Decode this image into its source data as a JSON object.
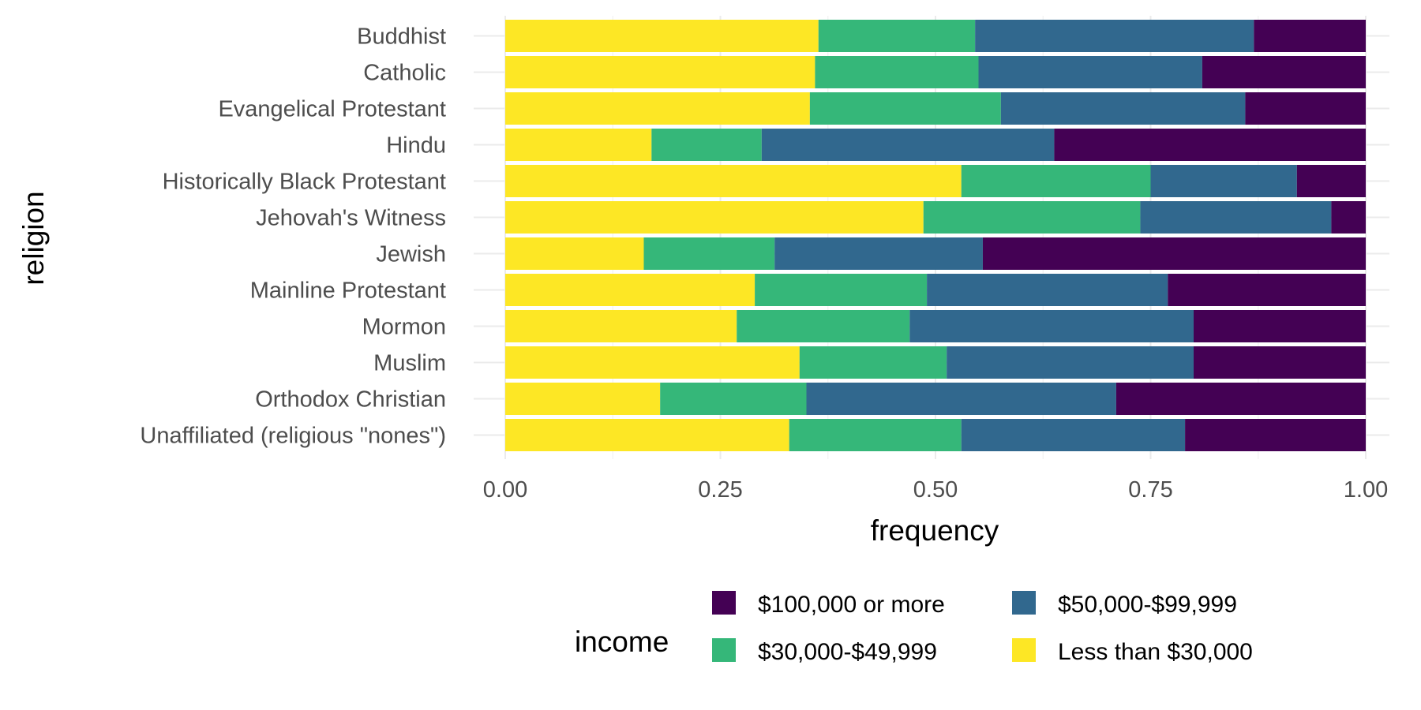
{
  "chart_data": {
    "type": "bar",
    "orientation": "horizontal",
    "stacked": "fill",
    "title": "",
    "xlabel": "frequency",
    "ylabel": "religion",
    "xlim": [
      0,
      1
    ],
    "x_ticks": [
      "0.00",
      "0.25",
      "0.50",
      "0.75",
      "1.00"
    ],
    "grid": true,
    "legend_position": "bottom",
    "legend_title": "income",
    "categories": [
      "Buddhist",
      "Catholic",
      "Evangelical Protestant",
      "Hindu",
      "Historically Black Protestant",
      "Jehovah's Witness",
      "Jewish",
      "Mainline Protestant",
      "Mormon",
      "Muslim",
      "Orthodox Christian",
      "Unaffiliated (religious \"nones\")"
    ],
    "series": [
      {
        "name": "Less than $30,000",
        "color": "#FDE725",
        "values": [
          0.364,
          0.36,
          0.354,
          0.17,
          0.53,
          0.486,
          0.161,
          0.29,
          0.269,
          0.342,
          0.18,
          0.33
        ]
      },
      {
        "name": "$30,000-$49,999",
        "color": "#35B779",
        "values": [
          0.182,
          0.19,
          0.222,
          0.128,
          0.22,
          0.252,
          0.152,
          0.2,
          0.201,
          0.171,
          0.17,
          0.2
        ]
      },
      {
        "name": "$50,000-$99,999",
        "color": "#31688E",
        "values": [
          0.324,
          0.26,
          0.284,
          0.34,
          0.17,
          0.222,
          0.242,
          0.28,
          0.33,
          0.287,
          0.36,
          0.26
        ]
      },
      {
        "name": "$100,000 or more",
        "color": "#440154",
        "values": [
          0.13,
          0.19,
          0.14,
          0.362,
          0.08,
          0.04,
          0.445,
          0.23,
          0.2,
          0.2,
          0.29,
          0.21
        ]
      }
    ],
    "legend_order": [
      "$100,000 or more",
      "$50,000-$99,999",
      "$30,000-$49,999",
      "Less than $30,000"
    ]
  }
}
